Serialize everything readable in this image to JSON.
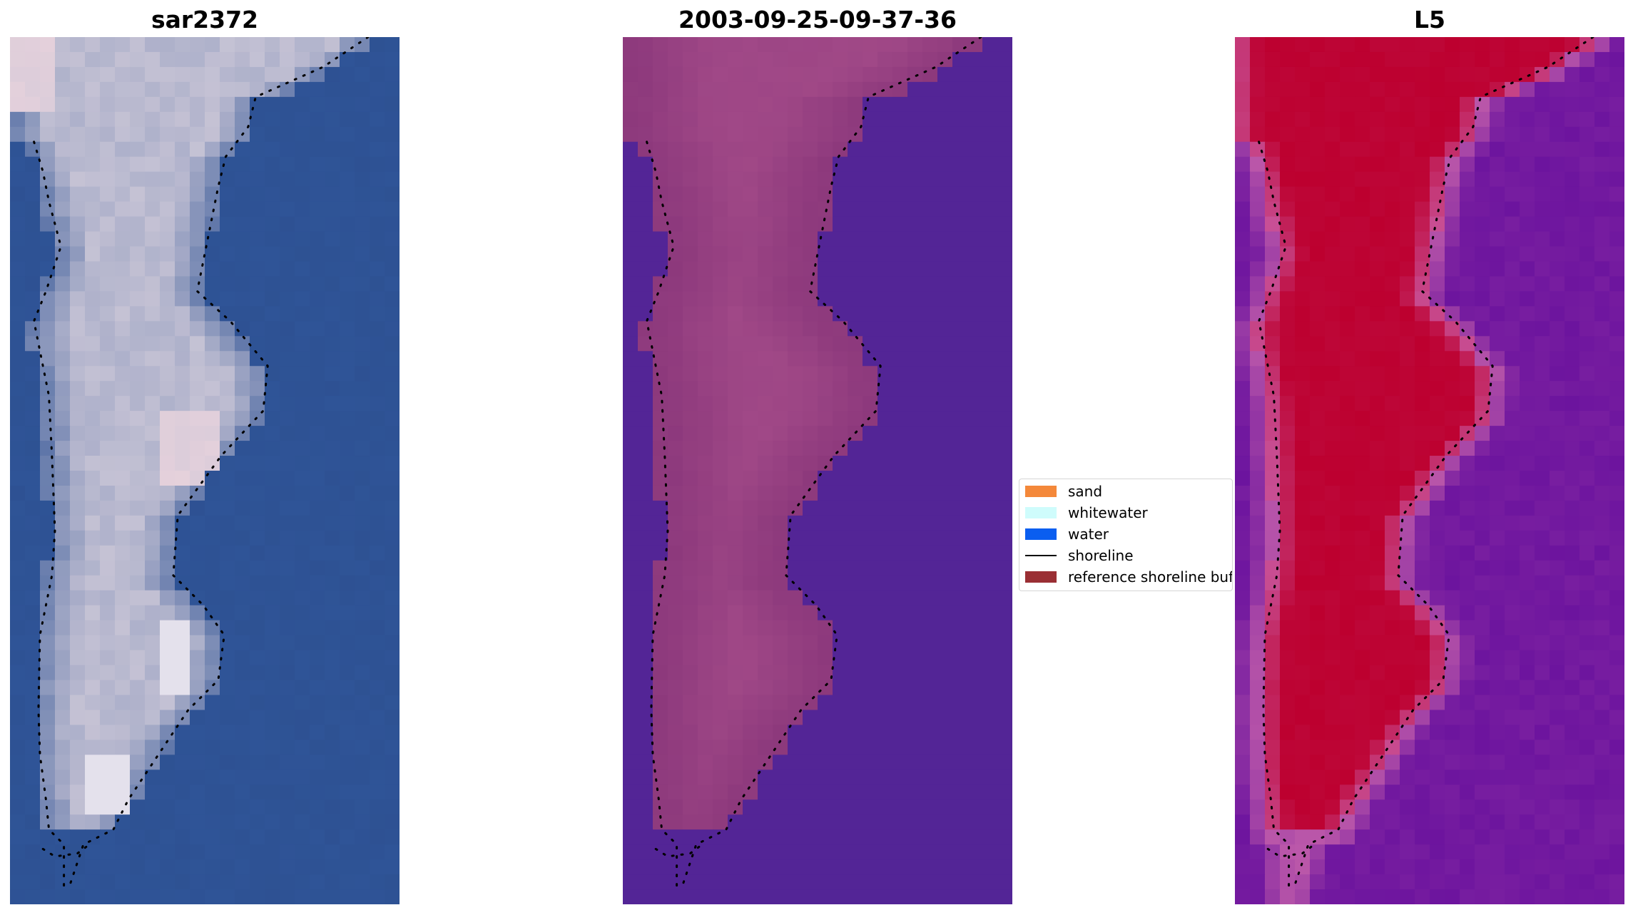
{
  "panels": [
    {
      "title": "sar2372",
      "mode": "rgb"
    },
    {
      "title": "2003-09-25-09-37-36",
      "mode": "class"
    },
    {
      "title": "L5",
      "mode": "prob"
    }
  ],
  "legend": {
    "items": [
      {
        "label": "sand",
        "color": "#f4883a",
        "kind": "patch"
      },
      {
        "label": "whitewater",
        "color": "#cffcfc",
        "kind": "patch"
      },
      {
        "label": "water",
        "color": "#0a5ef0",
        "kind": "patch"
      },
      {
        "label": "shoreline",
        "color": "#000000",
        "kind": "line"
      },
      {
        "label": "reference shoreline buffer",
        "color": "#9a2f34",
        "kind": "patch"
      }
    ]
  },
  "colors": {
    "water_rgb": "#2e5294",
    "land_rgb": "#c9c5d6",
    "class_water": "#532596",
    "class_land": "#8e3a7d",
    "prob_water": "#72199f",
    "prob_land": "#bd0333"
  }
}
